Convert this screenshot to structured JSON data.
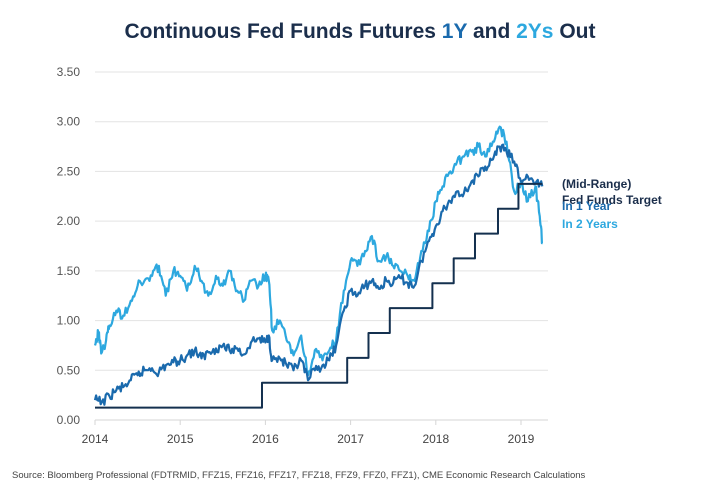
{
  "chart_data": {
    "type": "line",
    "title": "Continuous Fed Funds Futures 1Y and 2Ys Out",
    "title_parts": [
      {
        "text": "Continuous Fed Funds Futures ",
        "style": "base"
      },
      {
        "text": "1Y",
        "style": "c1"
      },
      {
        "text": " and ",
        "style": "base"
      },
      {
        "text": "2Ys",
        "style": "c2"
      },
      {
        "text": " Out",
        "style": "base"
      }
    ],
    "xlabel": "",
    "ylabel": "",
    "xlim": [
      2014.0,
      2019.27
    ],
    "ylim": [
      0,
      3.5
    ],
    "yticks": [
      "0.00",
      "0.50",
      "1.00",
      "1.50",
      "2.00",
      "2.50",
      "3.00",
      "3.50"
    ],
    "ytick_values": [
      0,
      0.5,
      1,
      1.5,
      2,
      2.5,
      3,
      3.5
    ],
    "xticks": [
      "2014",
      "2015",
      "2016",
      "2017",
      "2018",
      "2019"
    ],
    "xtick_values": [
      2014,
      2015,
      2016,
      2017,
      2018,
      2019
    ],
    "grid": true,
    "legend_position": "right",
    "series": [
      {
        "name": "(Mid-Range) Fed Funds Target",
        "color": "#14304f",
        "step": true,
        "x": [
          2014.0,
          2015.96,
          2016.96,
          2017.21,
          2017.46,
          2017.96,
          2018.21,
          2018.46,
          2018.73,
          2018.97,
          2019.25
        ],
        "y": [
          0.125,
          0.375,
          0.625,
          0.875,
          1.125,
          1.375,
          1.625,
          1.875,
          2.125,
          2.375,
          2.375
        ]
      },
      {
        "name": "In 1 Year",
        "color": "#1a6aad",
        "x": [
          2014.0,
          2014.08,
          2014.17,
          2014.25,
          2014.33,
          2014.42,
          2014.5,
          2014.58,
          2014.67,
          2014.75,
          2014.83,
          2014.92,
          2015.0,
          2015.08,
          2015.17,
          2015.25,
          2015.33,
          2015.42,
          2015.5,
          2015.58,
          2015.67,
          2015.75,
          2015.83,
          2015.92,
          2016.0,
          2016.04,
          2016.08,
          2016.17,
          2016.25,
          2016.33,
          2016.42,
          2016.5,
          2016.58,
          2016.67,
          2016.75,
          2016.83,
          2016.92,
          2017.0,
          2017.08,
          2017.17,
          2017.25,
          2017.33,
          2017.42,
          2017.5,
          2017.58,
          2017.67,
          2017.75,
          2017.83,
          2017.92,
          2018.0,
          2018.08,
          2018.17,
          2018.25,
          2018.33,
          2018.42,
          2018.5,
          2018.58,
          2018.67,
          2018.75,
          2018.83,
          2018.92,
          2019.0,
          2019.08,
          2019.17,
          2019.25
        ],
        "y": [
          0.2,
          0.18,
          0.24,
          0.3,
          0.33,
          0.4,
          0.45,
          0.5,
          0.52,
          0.48,
          0.55,
          0.58,
          0.6,
          0.65,
          0.7,
          0.62,
          0.68,
          0.72,
          0.75,
          0.7,
          0.72,
          0.66,
          0.78,
          0.82,
          0.78,
          0.85,
          0.6,
          0.62,
          0.55,
          0.5,
          0.6,
          0.4,
          0.5,
          0.55,
          0.6,
          0.75,
          1.1,
          1.3,
          1.25,
          1.35,
          1.4,
          1.32,
          1.4,
          1.38,
          1.43,
          1.38,
          1.35,
          1.6,
          1.8,
          1.95,
          2.1,
          2.2,
          2.3,
          2.28,
          2.4,
          2.45,
          2.55,
          2.62,
          2.75,
          2.7,
          2.6,
          2.4,
          2.45,
          2.38,
          2.35
        ]
      },
      {
        "name": "In 2 Years",
        "color": "#2da8df",
        "x": [
          2014.0,
          2014.04,
          2014.08,
          2014.13,
          2014.17,
          2014.25,
          2014.33,
          2014.42,
          2014.5,
          2014.58,
          2014.67,
          2014.75,
          2014.83,
          2014.92,
          2015.0,
          2015.08,
          2015.17,
          2015.25,
          2015.33,
          2015.42,
          2015.5,
          2015.58,
          2015.67,
          2015.75,
          2015.83,
          2015.92,
          2016.0,
          2016.04,
          2016.08,
          2016.17,
          2016.25,
          2016.33,
          2016.42,
          2016.5,
          2016.58,
          2016.67,
          2016.75,
          2016.83,
          2016.92,
          2017.0,
          2017.08,
          2017.17,
          2017.25,
          2017.33,
          2017.42,
          2017.5,
          2017.58,
          2017.67,
          2017.75,
          2017.83,
          2017.92,
          2018.0,
          2018.08,
          2018.17,
          2018.25,
          2018.33,
          2018.42,
          2018.5,
          2018.58,
          2018.67,
          2018.75,
          2018.83,
          2018.92,
          2019.0,
          2019.08,
          2019.17,
          2019.22,
          2019.25
        ],
        "y": [
          0.75,
          0.88,
          0.68,
          0.8,
          0.95,
          1.1,
          1.05,
          1.2,
          1.35,
          1.4,
          1.45,
          1.55,
          1.25,
          1.5,
          1.45,
          1.3,
          1.55,
          1.4,
          1.25,
          1.45,
          1.35,
          1.5,
          1.3,
          1.2,
          1.4,
          1.35,
          1.45,
          1.4,
          0.9,
          1.0,
          0.8,
          0.65,
          0.85,
          0.45,
          0.7,
          0.6,
          0.7,
          0.8,
          1.3,
          1.6,
          1.55,
          1.7,
          1.85,
          1.6,
          1.65,
          1.55,
          1.5,
          1.45,
          1.4,
          1.7,
          1.9,
          2.2,
          2.35,
          2.5,
          2.6,
          2.65,
          2.7,
          2.75,
          2.65,
          2.8,
          2.95,
          2.8,
          2.3,
          2.4,
          2.2,
          2.35,
          2.05,
          1.78
        ]
      }
    ],
    "source": "Source: Bloomberg Professional (FDTRMID, FFZ15, FFZ16, FFZ17, FFZ18, FFZ9, FFZ0, FFZ1), CME Economic Research Calculations"
  },
  "legend": [
    {
      "label_line1": "(Mid-Range)",
      "label_line2": "Fed Funds Target",
      "color": "#1b2e4b"
    },
    {
      "label": "In 1 Year",
      "color": "#1a6aad"
    },
    {
      "label": "In 2 Years",
      "color": "#2da8df"
    }
  ]
}
